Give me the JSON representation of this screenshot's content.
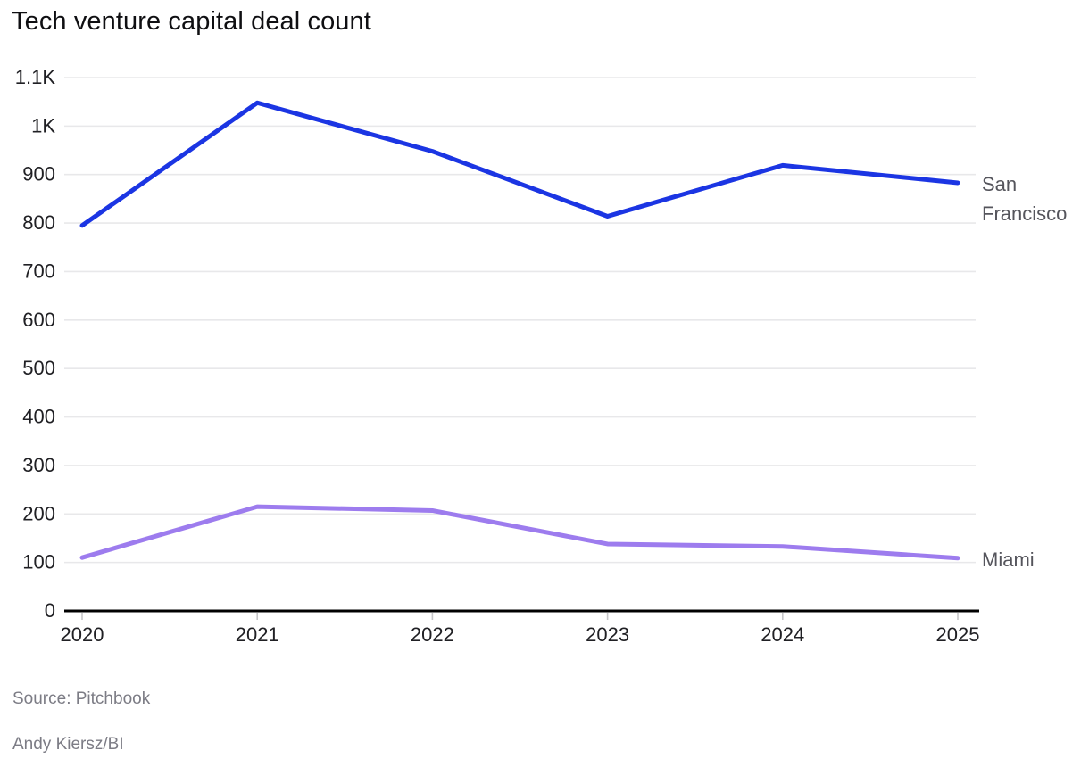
{
  "title": "Tech venture capital deal count",
  "chart_data": {
    "type": "line",
    "title": "Tech venture capital deal count",
    "x": [
      2020,
      2021,
      2022,
      2023,
      2024,
      2025
    ],
    "x_tick_labels": [
      "2020",
      "2021",
      "2022",
      "2023",
      "2024",
      "2025"
    ],
    "series": [
      {
        "name": "San Francisco",
        "color": "#1b35e3",
        "values": [
          795,
          1048,
          948,
          814,
          919,
          883
        ]
      },
      {
        "name": "Miami",
        "color": "#9d7cee",
        "values": [
          110,
          215,
          207,
          138,
          133,
          109
        ]
      }
    ],
    "ylim": [
      0,
      1100
    ],
    "ytick_interval": 100,
    "ytick_labels": [
      "0",
      "100",
      "200",
      "300",
      "400",
      "500",
      "600",
      "700",
      "800",
      "900",
      "1K",
      "1.1K"
    ],
    "grid": true,
    "legend_position": "right-of-line-end",
    "xlabel": "",
    "ylabel": ""
  },
  "footer": {
    "source": "Source: Pitchbook",
    "credit": "Andy Kiersz/BI"
  },
  "colors": {
    "background": "#ffffff",
    "grid": "#e8e8ea",
    "axis": "#000000",
    "axis_tick": "#c6c6c9",
    "tick_label": "#202024",
    "series_label": "#55555c",
    "footer_text": "#7c7c85"
  }
}
